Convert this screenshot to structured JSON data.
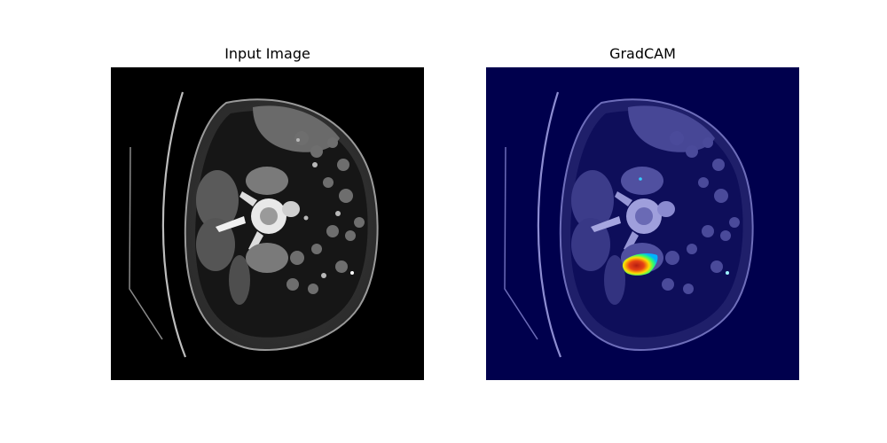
{
  "figure": {
    "panels": [
      {
        "title": "Input Image",
        "kind": "ct-scan-grayscale"
      },
      {
        "title": "GradCAM",
        "kind": "ct-scan-gradcam-overlay",
        "colormap": "jet"
      }
    ]
  },
  "colors": {
    "background": "#ffffff",
    "ct_background": "#000000",
    "gradcam_background": "#00004d",
    "heat_core": "#b51d12",
    "heat_mid": "#ffdd00",
    "heat_edge": "#33ff66",
    "heat_outer": "#00b3ff"
  }
}
